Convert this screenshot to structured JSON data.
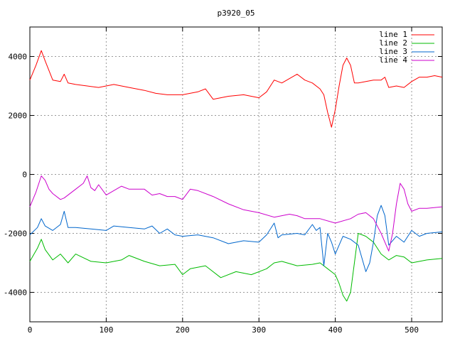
{
  "chart_data": {
    "type": "line",
    "title": "p3920_05",
    "xlabel": "",
    "ylabel": "",
    "xlim": [
      0,
      540
    ],
    "ylim": [
      -5000,
      5000
    ],
    "xticks": [
      0,
      100,
      200,
      300,
      400,
      500
    ],
    "yticks": [
      -4000,
      -2000,
      0,
      2000,
      4000
    ],
    "grid": true,
    "legend_position": "top-right",
    "series": [
      {
        "name": "line 1",
        "color": "#ff0000",
        "x": [
          0,
          8,
          15,
          20,
          30,
          40,
          45,
          50,
          60,
          75,
          90,
          110,
          130,
          150,
          165,
          180,
          200,
          220,
          230,
          240,
          260,
          280,
          300,
          310,
          320,
          330,
          340,
          350,
          360,
          370,
          380,
          385,
          390,
          395,
          400,
          405,
          410,
          415,
          420,
          425,
          430,
          440,
          450,
          460,
          465,
          470,
          480,
          490,
          500,
          510,
          520,
          530,
          540
        ],
        "y": [
          3200,
          3700,
          4200,
          3850,
          3200,
          3150,
          3400,
          3100,
          3050,
          3000,
          2950,
          3050,
          2950,
          2850,
          2750,
          2700,
          2700,
          2800,
          2900,
          2550,
          2650,
          2700,
          2600,
          2800,
          3200,
          3100,
          3250,
          3400,
          3200,
          3100,
          2900,
          2700,
          2100,
          1600,
          2200,
          3000,
          3700,
          3950,
          3700,
          3100,
          3100,
          3150,
          3200,
          3200,
          3300,
          2950,
          3000,
          2950,
          3150,
          3300,
          3300,
          3350,
          3300
        ]
      },
      {
        "name": "line 2",
        "color": "#00bb00",
        "x": [
          0,
          10,
          15,
          20,
          30,
          40,
          50,
          60,
          80,
          100,
          120,
          130,
          150,
          170,
          190,
          200,
          210,
          230,
          250,
          270,
          290,
          310,
          320,
          330,
          350,
          370,
          380,
          390,
          400,
          405,
          410,
          415,
          420,
          425,
          430,
          440,
          445,
          450,
          460,
          470,
          480,
          490,
          500,
          520,
          540
        ],
        "y": [
          -2950,
          -2500,
          -2200,
          -2550,
          -2900,
          -2700,
          -3000,
          -2700,
          -2950,
          -3000,
          -2900,
          -2750,
          -2950,
          -3100,
          -3050,
          -3400,
          -3200,
          -3100,
          -3500,
          -3300,
          -3400,
          -3200,
          -3000,
          -2950,
          -3100,
          -3050,
          -3000,
          -3200,
          -3400,
          -3700,
          -4100,
          -4300,
          -4000,
          -3000,
          -2000,
          -2100,
          -2200,
          -2300,
          -2700,
          -2900,
          -2750,
          -2800,
          -3000,
          -2900,
          -2850
        ]
      },
      {
        "name": "line 3",
        "color": "#0066cc",
        "x": [
          0,
          10,
          15,
          20,
          30,
          40,
          45,
          50,
          60,
          80,
          100,
          110,
          130,
          150,
          160,
          170,
          180,
          190,
          200,
          220,
          240,
          260,
          280,
          300,
          310,
          320,
          325,
          330,
          350,
          360,
          370,
          375,
          380,
          385,
          390,
          395,
          400,
          410,
          420,
          430,
          440,
          445,
          450,
          455,
          460,
          465,
          470,
          480,
          490,
          500,
          510,
          520,
          540
        ],
        "y": [
          -2050,
          -1800,
          -1500,
          -1750,
          -1900,
          -1700,
          -1250,
          -1800,
          -1800,
          -1850,
          -1900,
          -1750,
          -1800,
          -1850,
          -1750,
          -2000,
          -1850,
          -2050,
          -2100,
          -2050,
          -2150,
          -2350,
          -2250,
          -2300,
          -2050,
          -1650,
          -2150,
          -2050,
          -2000,
          -2050,
          -1700,
          -1900,
          -1800,
          -3100,
          -2000,
          -2300,
          -2700,
          -2100,
          -2200,
          -2400,
          -3300,
          -3000,
          -2300,
          -1400,
          -1050,
          -1400,
          -2400,
          -2100,
          -2300,
          -1900,
          -2100,
          -2000,
          -1950
        ]
      },
      {
        "name": "line 4",
        "color": "#cc00cc",
        "x": [
          0,
          8,
          15,
          20,
          25,
          30,
          40,
          45,
          60,
          70,
          75,
          80,
          85,
          90,
          100,
          110,
          120,
          130,
          150,
          160,
          170,
          180,
          190,
          200,
          210,
          220,
          240,
          260,
          280,
          300,
          320,
          340,
          350,
          360,
          380,
          400,
          420,
          430,
          440,
          450,
          460,
          465,
          470,
          475,
          480,
          485,
          490,
          495,
          500,
          510,
          520,
          540
        ],
        "y": [
          -1100,
          -600,
          -50,
          -200,
          -500,
          -650,
          -850,
          -800,
          -500,
          -300,
          -50,
          -450,
          -550,
          -350,
          -700,
          -550,
          -400,
          -500,
          -500,
          -700,
          -650,
          -750,
          -750,
          -850,
          -500,
          -550,
          -750,
          -1000,
          -1200,
          -1300,
          -1450,
          -1350,
          -1400,
          -1500,
          -1500,
          -1650,
          -1500,
          -1350,
          -1300,
          -1500,
          -2000,
          -2300,
          -2600,
          -2000,
          -1000,
          -300,
          -500,
          -1000,
          -1250,
          -1150,
          -1150,
          -1100
        ]
      }
    ]
  }
}
